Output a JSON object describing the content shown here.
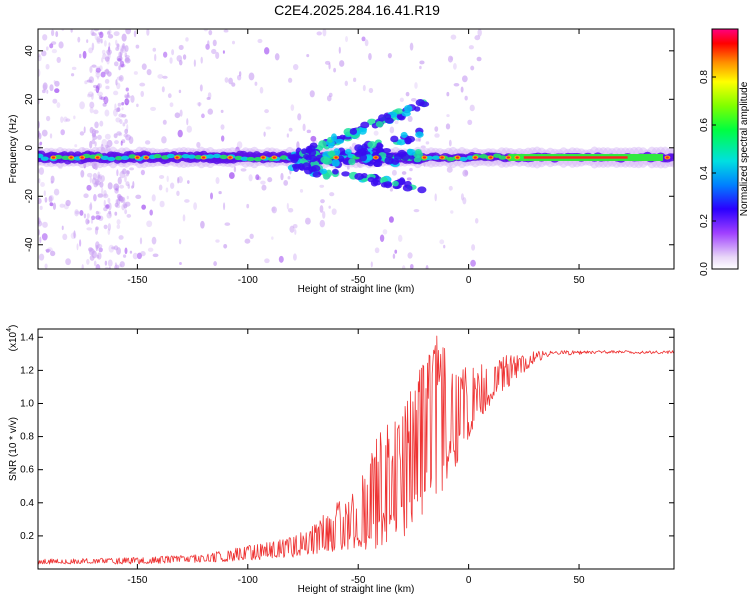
{
  "title": "C2E4.2025.284.16.41.R19",
  "colors": {
    "snr_line": "#ee3333",
    "band_core": "#ff2020",
    "background": "#ffffff"
  },
  "chart_data": [
    {
      "type": "heatmap",
      "xlabel": "Height of straight line (km)",
      "ylabel": "Frequency (Hz)",
      "xlim": [
        -195,
        93
      ],
      "ylim": [
        -50,
        49
      ],
      "xticks": [
        -150,
        -100,
        -50,
        0,
        50
      ],
      "yticks": [
        -40,
        -20,
        0,
        20,
        40
      ],
      "band_center_hz": -4,
      "colorbar": {
        "label": "Normalized spectral amplitude",
        "range": [
          0,
          1
        ],
        "ticks": [
          "0.0",
          "0.2",
          "0.4",
          "0.6",
          "0.8"
        ]
      }
    },
    {
      "type": "line",
      "xlabel": "Height of straight line (km)",
      "ylabel": "SNR (10 * v/v)",
      "y_multiplier_label": "(x10",
      "y_multiplier_exp": "4",
      "xlim": [
        -195,
        93
      ],
      "ylim": [
        0,
        1.45
      ],
      "xticks": [
        -150,
        -100,
        -50,
        0,
        50
      ],
      "yticks": [
        "0.2",
        "0.4",
        "0.6",
        "0.8",
        "1.0",
        "1.2",
        "1.4"
      ],
      "series": [
        {
          "name": "SNR",
          "envelope": {
            "x": [
              -195,
              -150,
              -120,
              -100,
              -80,
              -70,
              -60,
              -50,
              -40,
              -30,
              -20,
              -15,
              -10,
              0,
              10,
              20,
              30,
              40,
              60,
              80,
              93
            ],
            "baseline": [
              0.03,
              0.03,
              0.04,
              0.05,
              0.07,
              0.09,
              0.1,
              0.1,
              0.12,
              0.15,
              0.25,
              0.35,
              0.5,
              0.78,
              1.0,
              1.12,
              1.25,
              1.29,
              1.3,
              1.3,
              1.3
            ],
            "peak": [
              0.06,
              0.07,
              0.09,
              0.14,
              0.2,
              0.28,
              0.4,
              0.5,
              0.85,
              0.95,
              1.3,
              1.45,
              1.32,
              1.2,
              1.28,
              1.3,
              1.32,
              1.32,
              1.32,
              1.32,
              1.32
            ]
          }
        }
      ]
    }
  ]
}
